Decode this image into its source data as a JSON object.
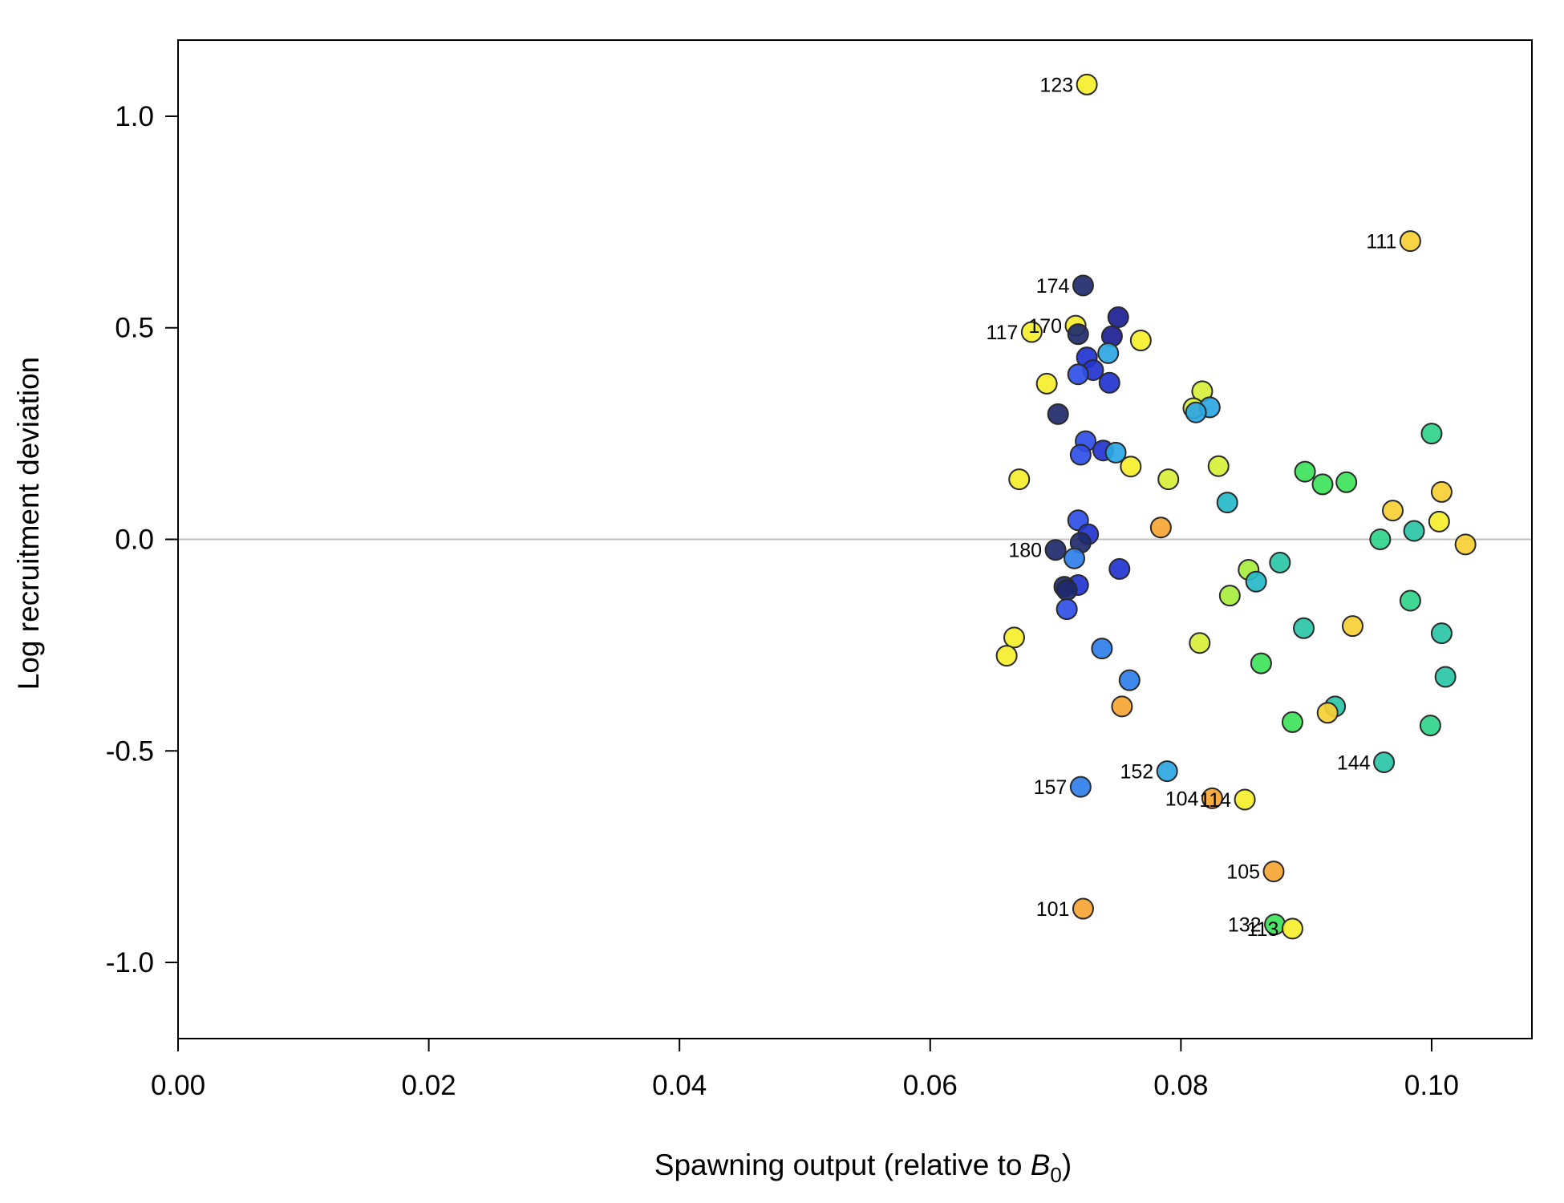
{
  "chart_data": {
    "type": "scatter",
    "xlabel": "Spawning output (relative to B0)",
    "xlabel_parts": {
      "main": "Spawning output (relative to ",
      "italic": "B",
      "sub": "0",
      "close": ")"
    },
    "ylabel": "Log recruitment deviation",
    "xlim": [
      0,
      0.108
    ],
    "ylim": [
      -1.18,
      1.18
    ],
    "x_ticks": [
      {
        "value": 0.0,
        "label": "0.00"
      },
      {
        "value": 0.02,
        "label": "0.02"
      },
      {
        "value": 0.04,
        "label": "0.04"
      },
      {
        "value": 0.06,
        "label": "0.06"
      },
      {
        "value": 0.08,
        "label": "0.08"
      },
      {
        "value": 0.1,
        "label": "0.10"
      }
    ],
    "y_ticks": [
      {
        "value": -1.0,
        "label": "-1.0"
      },
      {
        "value": -0.5,
        "label": "-0.5"
      },
      {
        "value": 0.0,
        "label": "0.0"
      },
      {
        "value": 0.5,
        "label": "0.5"
      },
      {
        "value": 1.0,
        "label": "1.0"
      }
    ],
    "reference_line": {
      "y": 0,
      "color": "#bfbfbf"
    },
    "colors": {
      "navy": "#1e2a6b",
      "darkblue": "#1c1f90",
      "blue": "#2233d0",
      "royal": "#2f4fe6",
      "azure": "#2f7fec",
      "sky": "#2ba7e3",
      "cyan": "#25b8c9",
      "teal": "#2bc6a8",
      "seagreen": "#2fd48a",
      "green": "#3de35a",
      "lime": "#a8ee3e",
      "yellowgreen": "#d8f03a",
      "yellow": "#f5ef2d",
      "gold": "#f7cf33",
      "orange": "#f6a534"
    },
    "points": [
      {
        "x": 0.0725,
        "y": 1.075,
        "color": "yellow",
        "label": "123"
      },
      {
        "x": 0.0983,
        "y": 0.705,
        "color": "gold",
        "label": "111"
      },
      {
        "x": 0.0722,
        "y": 0.6,
        "color": "navy",
        "label": "174"
      },
      {
        "x": 0.0716,
        "y": 0.505,
        "color": "yellow",
        "label": "170"
      },
      {
        "x": 0.0681,
        "y": 0.49,
        "color": "yellow",
        "label": "117"
      },
      {
        "x": 0.075,
        "y": 0.525,
        "color": "darkblue",
        "label": ""
      },
      {
        "x": 0.0718,
        "y": 0.485,
        "color": "navy",
        "label": ""
      },
      {
        "x": 0.0745,
        "y": 0.48,
        "color": "darkblue",
        "label": ""
      },
      {
        "x": 0.0768,
        "y": 0.47,
        "color": "yellow",
        "label": ""
      },
      {
        "x": 0.0742,
        "y": 0.44,
        "color": "sky",
        "label": ""
      },
      {
        "x": 0.0725,
        "y": 0.43,
        "color": "blue",
        "label": ""
      },
      {
        "x": 0.073,
        "y": 0.4,
        "color": "blue",
        "label": ""
      },
      {
        "x": 0.0718,
        "y": 0.39,
        "color": "royal",
        "label": ""
      },
      {
        "x": 0.0743,
        "y": 0.37,
        "color": "blue",
        "label": ""
      },
      {
        "x": 0.0693,
        "y": 0.368,
        "color": "yellow",
        "label": ""
      },
      {
        "x": 0.0817,
        "y": 0.35,
        "color": "yellowgreen",
        "label": ""
      },
      {
        "x": 0.081,
        "y": 0.31,
        "color": "yellowgreen",
        "label": ""
      },
      {
        "x": 0.0823,
        "y": 0.312,
        "color": "sky",
        "label": ""
      },
      {
        "x": 0.0812,
        "y": 0.3,
        "color": "sky",
        "label": ""
      },
      {
        "x": 0.0702,
        "y": 0.296,
        "color": "navy",
        "label": ""
      },
      {
        "x": 0.1,
        "y": 0.25,
        "color": "seagreen",
        "label": ""
      },
      {
        "x": 0.0724,
        "y": 0.232,
        "color": "royal",
        "label": ""
      },
      {
        "x": 0.0738,
        "y": 0.21,
        "color": "blue",
        "label": ""
      },
      {
        "x": 0.0748,
        "y": 0.205,
        "color": "sky",
        "label": ""
      },
      {
        "x": 0.072,
        "y": 0.2,
        "color": "royal",
        "label": ""
      },
      {
        "x": 0.076,
        "y": 0.172,
        "color": "yellow",
        "label": ""
      },
      {
        "x": 0.083,
        "y": 0.173,
        "color": "yellowgreen",
        "label": ""
      },
      {
        "x": 0.0899,
        "y": 0.16,
        "color": "green",
        "label": ""
      },
      {
        "x": 0.0671,
        "y": 0.142,
        "color": "yellow",
        "label": ""
      },
      {
        "x": 0.079,
        "y": 0.142,
        "color": "yellowgreen",
        "label": ""
      },
      {
        "x": 0.0913,
        "y": 0.13,
        "color": "green",
        "label": ""
      },
      {
        "x": 0.0932,
        "y": 0.135,
        "color": "green",
        "label": ""
      },
      {
        "x": 0.1008,
        "y": 0.112,
        "color": "gold",
        "label": ""
      },
      {
        "x": 0.0837,
        "y": 0.087,
        "color": "cyan",
        "label": ""
      },
      {
        "x": 0.0969,
        "y": 0.068,
        "color": "gold",
        "label": ""
      },
      {
        "x": 0.0718,
        "y": 0.045,
        "color": "royal",
        "label": ""
      },
      {
        "x": 0.1006,
        "y": 0.042,
        "color": "yellow",
        "label": ""
      },
      {
        "x": 0.0784,
        "y": 0.028,
        "color": "orange",
        "label": ""
      },
      {
        "x": 0.0986,
        "y": 0.02,
        "color": "teal",
        "label": ""
      },
      {
        "x": 0.0726,
        "y": 0.012,
        "color": "blue",
        "label": ""
      },
      {
        "x": 0.0959,
        "y": 0.0,
        "color": "seagreen",
        "label": ""
      },
      {
        "x": 0.1027,
        "y": -0.012,
        "color": "gold",
        "label": ""
      },
      {
        "x": 0.072,
        "y": -0.008,
        "color": "navy",
        "label": ""
      },
      {
        "x": 0.07,
        "y": -0.025,
        "color": "navy",
        "label": "180"
      },
      {
        "x": 0.0715,
        "y": -0.045,
        "color": "azure",
        "label": ""
      },
      {
        "x": 0.0879,
        "y": -0.055,
        "color": "teal",
        "label": ""
      },
      {
        "x": 0.0854,
        "y": -0.072,
        "color": "lime",
        "label": ""
      },
      {
        "x": 0.0751,
        "y": -0.07,
        "color": "blue",
        "label": ""
      },
      {
        "x": 0.086,
        "y": -0.1,
        "color": "cyan",
        "label": ""
      },
      {
        "x": 0.0718,
        "y": -0.108,
        "color": "blue",
        "label": ""
      },
      {
        "x": 0.0707,
        "y": -0.112,
        "color": "navy",
        "label": ""
      },
      {
        "x": 0.0709,
        "y": -0.12,
        "color": "navy",
        "label": ""
      },
      {
        "x": 0.0839,
        "y": -0.133,
        "color": "lime",
        "label": ""
      },
      {
        "x": 0.0983,
        "y": -0.145,
        "color": "seagreen",
        "label": ""
      },
      {
        "x": 0.0709,
        "y": -0.165,
        "color": "royal",
        "label": ""
      },
      {
        "x": 0.0937,
        "y": -0.205,
        "color": "gold",
        "label": ""
      },
      {
        "x": 0.0898,
        "y": -0.21,
        "color": "teal",
        "label": ""
      },
      {
        "x": 0.1008,
        "y": -0.222,
        "color": "teal",
        "label": ""
      },
      {
        "x": 0.0667,
        "y": -0.232,
        "color": "yellow",
        "label": ""
      },
      {
        "x": 0.0815,
        "y": -0.245,
        "color": "yellowgreen",
        "label": ""
      },
      {
        "x": 0.0737,
        "y": -0.258,
        "color": "azure",
        "label": ""
      },
      {
        "x": 0.0661,
        "y": -0.275,
        "color": "yellow",
        "label": ""
      },
      {
        "x": 0.0864,
        "y": -0.293,
        "color": "green",
        "label": ""
      },
      {
        "x": 0.1011,
        "y": -0.325,
        "color": "teal",
        "label": ""
      },
      {
        "x": 0.0759,
        "y": -0.333,
        "color": "azure",
        "label": ""
      },
      {
        "x": 0.0753,
        "y": -0.395,
        "color": "orange",
        "label": ""
      },
      {
        "x": 0.0923,
        "y": -0.395,
        "color": "teal",
        "label": ""
      },
      {
        "x": 0.0917,
        "y": -0.41,
        "color": "gold",
        "label": ""
      },
      {
        "x": 0.0889,
        "y": -0.432,
        "color": "green",
        "label": ""
      },
      {
        "x": 0.0999,
        "y": -0.44,
        "color": "seagreen",
        "label": ""
      },
      {
        "x": 0.0962,
        "y": -0.527,
        "color": "teal",
        "label": "144"
      },
      {
        "x": 0.0789,
        "y": -0.548,
        "color": "sky",
        "label": "152"
      },
      {
        "x": 0.072,
        "y": -0.585,
        "color": "azure",
        "label": "157"
      },
      {
        "x": 0.0825,
        "y": -0.612,
        "color": "orange",
        "label": "104"
      },
      {
        "x": 0.0851,
        "y": -0.615,
        "color": "yellow",
        "label": "114"
      },
      {
        "x": 0.0874,
        "y": -0.785,
        "color": "orange",
        "label": "105"
      },
      {
        "x": 0.0722,
        "y": -0.873,
        "color": "orange",
        "label": "101"
      },
      {
        "x": 0.0875,
        "y": -0.91,
        "color": "green",
        "label": "132"
      },
      {
        "x": 0.0889,
        "y": -0.92,
        "color": "yellow",
        "label": "113"
      }
    ]
  }
}
